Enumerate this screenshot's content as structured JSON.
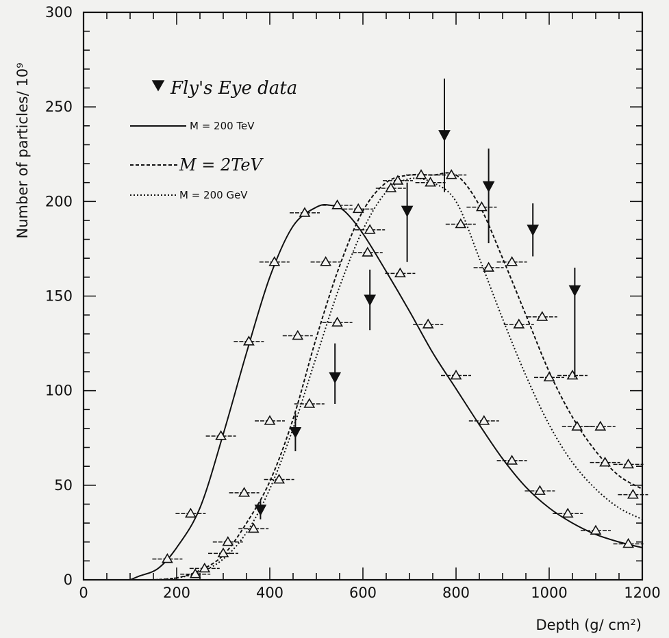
{
  "chart_data": {
    "type": "line",
    "xlabel": "Depth (g/ cm²)",
    "ylabel": "Number of particles/ 10⁹",
    "xlim": [
      0,
      1200
    ],
    "ylim": [
      0,
      300
    ],
    "x_ticks": [
      "0",
      "200",
      "400",
      "600",
      "800",
      "1000",
      "1200"
    ],
    "y_ticks": [
      "0",
      "50",
      "100",
      "150",
      "200",
      "250",
      "300"
    ],
    "grid": false,
    "legend_position": "top-left",
    "series": [
      {
        "name": "M = 200 TeV",
        "style": "solid",
        "x": [
          100,
          120,
          160,
          200,
          250,
          300,
          350,
          400,
          450,
          500,
          530,
          560,
          600,
          650,
          700,
          750,
          800,
          850,
          900,
          950,
          1000,
          1050,
          1100,
          1150,
          1200
        ],
        "y": [
          0,
          2,
          6,
          17,
          38,
          77,
          120,
          160,
          187,
          197,
          198,
          195,
          183,
          163,
          142,
          120,
          101,
          82,
          64,
          49,
          38,
          30,
          24,
          20,
          17
        ],
        "markers": {
          "x": [
            180,
            230,
            295,
            355,
            410,
            475,
            545,
            610,
            680,
            740,
            800,
            860,
            920,
            980,
            1040,
            1100,
            1170
          ],
          "y": [
            11,
            35,
            76,
            126,
            168,
            194,
            198,
            173,
            162,
            135,
            108,
            84,
            63,
            47,
            35,
            26,
            19
          ]
        }
      },
      {
        "name": "M = 2TeV",
        "style": "dashed",
        "x": [
          150,
          200,
          250,
          300,
          350,
          400,
          450,
          500,
          550,
          600,
          650,
          700,
          750,
          800,
          850,
          900,
          950,
          1000,
          1050,
          1100,
          1150,
          1200
        ],
        "y": [
          0,
          1,
          5,
          13,
          30,
          52,
          85,
          128,
          166,
          195,
          210,
          214,
          214,
          214,
          198,
          170,
          140,
          110,
          86,
          68,
          55,
          48
        ],
        "markers": {
          "x": [
            240,
            300,
            345,
            400,
            460,
            520,
            590,
            660,
            725,
            790,
            855,
            920,
            985,
            1050,
            1110,
            1170
          ],
          "y": [
            3,
            14,
            46,
            84,
            129,
            168,
            196,
            207,
            214,
            214,
            197,
            168,
            139,
            108,
            81,
            61
          ]
        }
      },
      {
        "name": "M = 200 GeV",
        "style": "dotted",
        "x": [
          150,
          200,
          250,
          300,
          350,
          400,
          450,
          500,
          550,
          600,
          650,
          700,
          750,
          800,
          850,
          900,
          950,
          1000,
          1050,
          1100,
          1150,
          1200
        ],
        "y": [
          0,
          1,
          4,
          11,
          25,
          48,
          80,
          118,
          155,
          185,
          205,
          212,
          210,
          200,
          170,
          138,
          108,
          82,
          62,
          48,
          38,
          32
        ],
        "markers": {
          "x": [
            260,
            310,
            365,
            420,
            485,
            545,
            615,
            675,
            745,
            810,
            870,
            935,
            1000,
            1060,
            1120,
            1180
          ],
          "y": [
            6,
            20,
            27,
            53,
            93,
            136,
            185,
            211,
            210,
            188,
            165,
            135,
            107,
            81,
            62,
            45
          ]
        }
      },
      {
        "name": "Fly's Eye data",
        "style": "points",
        "x": [
          380,
          455,
          540,
          615,
          695,
          775,
          870,
          965,
          1055
        ],
        "y": [
          37,
          78,
          107,
          148,
          195,
          235,
          208,
          185,
          153
        ],
        "y_err_low": [
          5,
          10,
          14,
          16,
          27,
          30,
          30,
          14,
          46
        ],
        "y_err_high": [
          5,
          10,
          18,
          16,
          15,
          30,
          20,
          14,
          12
        ]
      }
    ]
  },
  "legend": {
    "entries": [
      "Fly's Eye data",
      "M = 200 TeV",
      "M = 2TeV",
      "M = 200 GeV"
    ]
  },
  "colors": {
    "ink": "#111111",
    "background": "#f2f2f0"
  }
}
